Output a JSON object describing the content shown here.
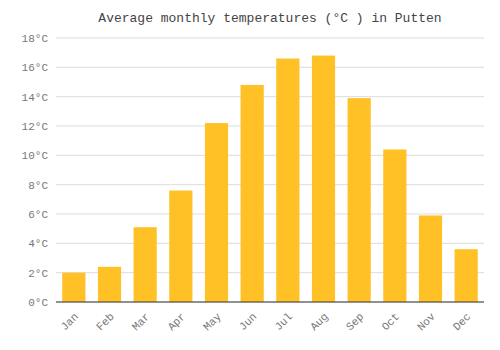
{
  "chart_data": {
    "type": "bar",
    "title": "Average monthly temperatures (°C ) in Putten",
    "categories": [
      "Jan",
      "Feb",
      "Mar",
      "Apr",
      "May",
      "Jun",
      "Jul",
      "Aug",
      "Sep",
      "Oct",
      "Nov",
      "Dec"
    ],
    "values": [
      2.0,
      2.4,
      5.1,
      7.6,
      12.2,
      14.8,
      16.6,
      16.8,
      13.9,
      10.4,
      5.9,
      3.6
    ],
    "color": "#FFC125",
    "ylim": [
      0,
      18
    ],
    "yticks": [
      {
        "value": 0,
        "label": "0°C"
      },
      {
        "value": 2,
        "label": "2°C"
      },
      {
        "value": 4,
        "label": "4°C"
      },
      {
        "value": 6,
        "label": "6°C"
      },
      {
        "value": 8,
        "label": "8°C"
      },
      {
        "value": 10,
        "label": "10°C"
      },
      {
        "value": 12,
        "label": "12°C"
      },
      {
        "value": 14,
        "label": "14°C"
      },
      {
        "value": 16,
        "label": "16°C"
      },
      {
        "value": 18,
        "label": "18°C"
      }
    ],
    "grid": true
  }
}
